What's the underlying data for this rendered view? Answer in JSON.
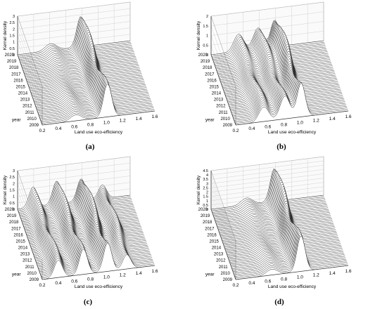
{
  "chart_data": [
    {
      "type": "surface",
      "panel_label": "(a)",
      "xlabel": "Land use eco-efficiency",
      "ylabel": "year",
      "zlabel": "Kernel density",
      "xticks": [
        "0.2",
        "0.4",
        "0.6",
        "0.8",
        "1.0",
        "1.2",
        "1.4",
        "1.6"
      ],
      "yticks": [
        "2009",
        "2010",
        "2011",
        "2012",
        "2013",
        "2014",
        "2015",
        "2016",
        "2017",
        "2018",
        "2019",
        "2020"
      ],
      "zticks": [
        "0",
        "0.5",
        "1",
        "1.5",
        "2",
        "2.5",
        "3"
      ],
      "zlim": [
        0,
        3
      ],
      "peaks": [
        {
          "center": 0.62,
          "height": 0.55,
          "width": 0.07
        },
        {
          "center": 1.0,
          "height": 2.6,
          "width": 0.05
        }
      ]
    },
    {
      "type": "surface",
      "panel_label": "(b)",
      "xlabel": "Land use eco-efficiency",
      "ylabel": "year",
      "zlabel": "Kernel density",
      "xticks": [
        "0.2",
        "0.4",
        "0.6",
        "0.8",
        "1.0",
        "1.2",
        "1.4",
        "1.6"
      ],
      "yticks": [
        "2009",
        "2010",
        "2011",
        "2012",
        "2013",
        "2014",
        "2015",
        "2016",
        "2017",
        "2018",
        "2019",
        "2020"
      ],
      "zticks": [
        "0",
        "0.5",
        "1",
        "1.5",
        "2"
      ],
      "zlim": [
        0,
        2
      ],
      "peaks": [
        {
          "center": 0.55,
          "height": 0.9,
          "width": 0.06
        },
        {
          "center": 0.8,
          "height": 1.2,
          "width": 0.06
        },
        {
          "center": 1.0,
          "height": 1.9,
          "width": 0.05
        }
      ]
    },
    {
      "type": "surface",
      "panel_label": "(c)",
      "xlabel": "Land use eco-efficiency",
      "ylabel": "year",
      "zlabel": "Kernel density",
      "xticks": [
        "0.2",
        "0.4",
        "0.6",
        "0.8",
        "1.0",
        "1.2",
        "1.4",
        "1.6"
      ],
      "yticks": [
        "2009",
        "2010",
        "2011",
        "2012",
        "2013",
        "2014",
        "2015",
        "2016",
        "2017",
        "2018",
        "2019",
        "2020"
      ],
      "zticks": [
        "0",
        "0.5",
        "1",
        "1.5",
        "2",
        "2.5",
        "3"
      ],
      "zlim": [
        0,
        3
      ],
      "peaks": [
        {
          "center": 0.4,
          "height": 1.6,
          "width": 0.05
        },
        {
          "center": 0.7,
          "height": 2.0,
          "width": 0.05
        },
        {
          "center": 1.0,
          "height": 2.4,
          "width": 0.05
        },
        {
          "center": 1.25,
          "height": 1.5,
          "width": 0.05
        }
      ]
    },
    {
      "type": "surface",
      "panel_label": "(d)",
      "xlabel": "Land use eco-efficiency",
      "ylabel": "year",
      "zlabel": "Kernel density",
      "xticks": [
        "0.2",
        "0.4",
        "0.6",
        "0.8",
        "1.0",
        "1.2",
        "1.4",
        "1.6"
      ],
      "yticks": [
        "2009",
        "2010",
        "2011",
        "2012",
        "2013",
        "2014",
        "2015",
        "2016",
        "2017",
        "2018",
        "2019",
        "2020"
      ],
      "zticks": [
        "0",
        "0.5",
        "1",
        "1.5",
        "2",
        "2.5",
        "3",
        "3.5",
        "4",
        "4.5"
      ],
      "zlim": [
        0,
        4.5
      ],
      "peaks": [
        {
          "center": 0.65,
          "height": 0.8,
          "width": 0.07
        },
        {
          "center": 1.0,
          "height": 4.2,
          "width": 0.05
        }
      ]
    }
  ]
}
